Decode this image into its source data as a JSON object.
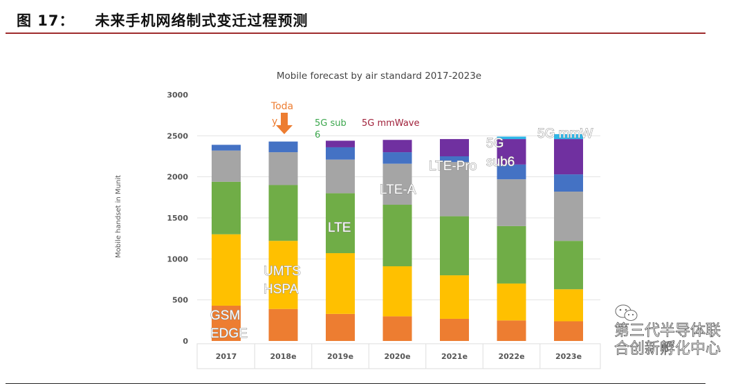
{
  "header": {
    "figure_no": "图 17：",
    "title": "未来手机网络制式变迁过程预测"
  },
  "watermark": "第三代半导体联合创新孵化中心",
  "watermark_icon": "wechat-icon",
  "chart_data": {
    "type": "bar",
    "stacked": true,
    "title": "Mobile forecast by air standard 2017-2023e",
    "xlabel": "",
    "ylabel": "Mobile handset in Munit",
    "ylim": [
      0,
      3000
    ],
    "yticks": [
      0,
      500,
      1000,
      1500,
      2000,
      2500,
      3000
    ],
    "grid": true,
    "categories": [
      "2017",
      "2018e",
      "2019e",
      "2020e",
      "2021e",
      "2022e",
      "2023e"
    ],
    "series": [
      {
        "name": "GSM EDGE",
        "color": "#ED7D31",
        "values": [
          430,
          390,
          330,
          300,
          270,
          250,
          240
        ]
      },
      {
        "name": "UMTS HSPA",
        "color": "#FFC000",
        "values": [
          870,
          830,
          740,
          610,
          530,
          450,
          390
        ]
      },
      {
        "name": "LTE",
        "color": "#70AD47",
        "values": [
          640,
          680,
          730,
          750,
          720,
          700,
          590
        ]
      },
      {
        "name": "LTE-A",
        "color": "#A5A5A5",
        "values": [
          380,
          400,
          410,
          500,
          660,
          570,
          600
        ]
      },
      {
        "name": "LTE-Pro",
        "color": "#4472C4",
        "values": [
          70,
          130,
          150,
          140,
          70,
          180,
          210
        ]
      },
      {
        "name": "5G sub6",
        "color": "#7030A0",
        "values": [
          0,
          0,
          80,
          150,
          210,
          310,
          430
        ]
      },
      {
        "name": "5G mmW",
        "color": "#2EB6E8",
        "values": [
          0,
          0,
          0,
          0,
          0,
          30,
          60
        ]
      }
    ],
    "annotations": {
      "today_line1": "Toda",
      "today_line2": "y",
      "sub6_line1": "5G sub",
      "sub6_line2": "6",
      "mmwave": "5G mmWave",
      "gsm1": "GSM",
      "gsm2": "EDGE",
      "umts1": "UMTS",
      "umts2": "HSPA",
      "lte": "LTE",
      "ltea": "LTE-A",
      "ltepro": "LTE-Pro",
      "sub6b1": "5G",
      "sub6b2": "sub6",
      "mmw": "5G mmW"
    },
    "annotation_colors": {
      "today": "#ED7D31",
      "sub6": "#3AA64C",
      "mmwave": "#A0203A"
    }
  }
}
